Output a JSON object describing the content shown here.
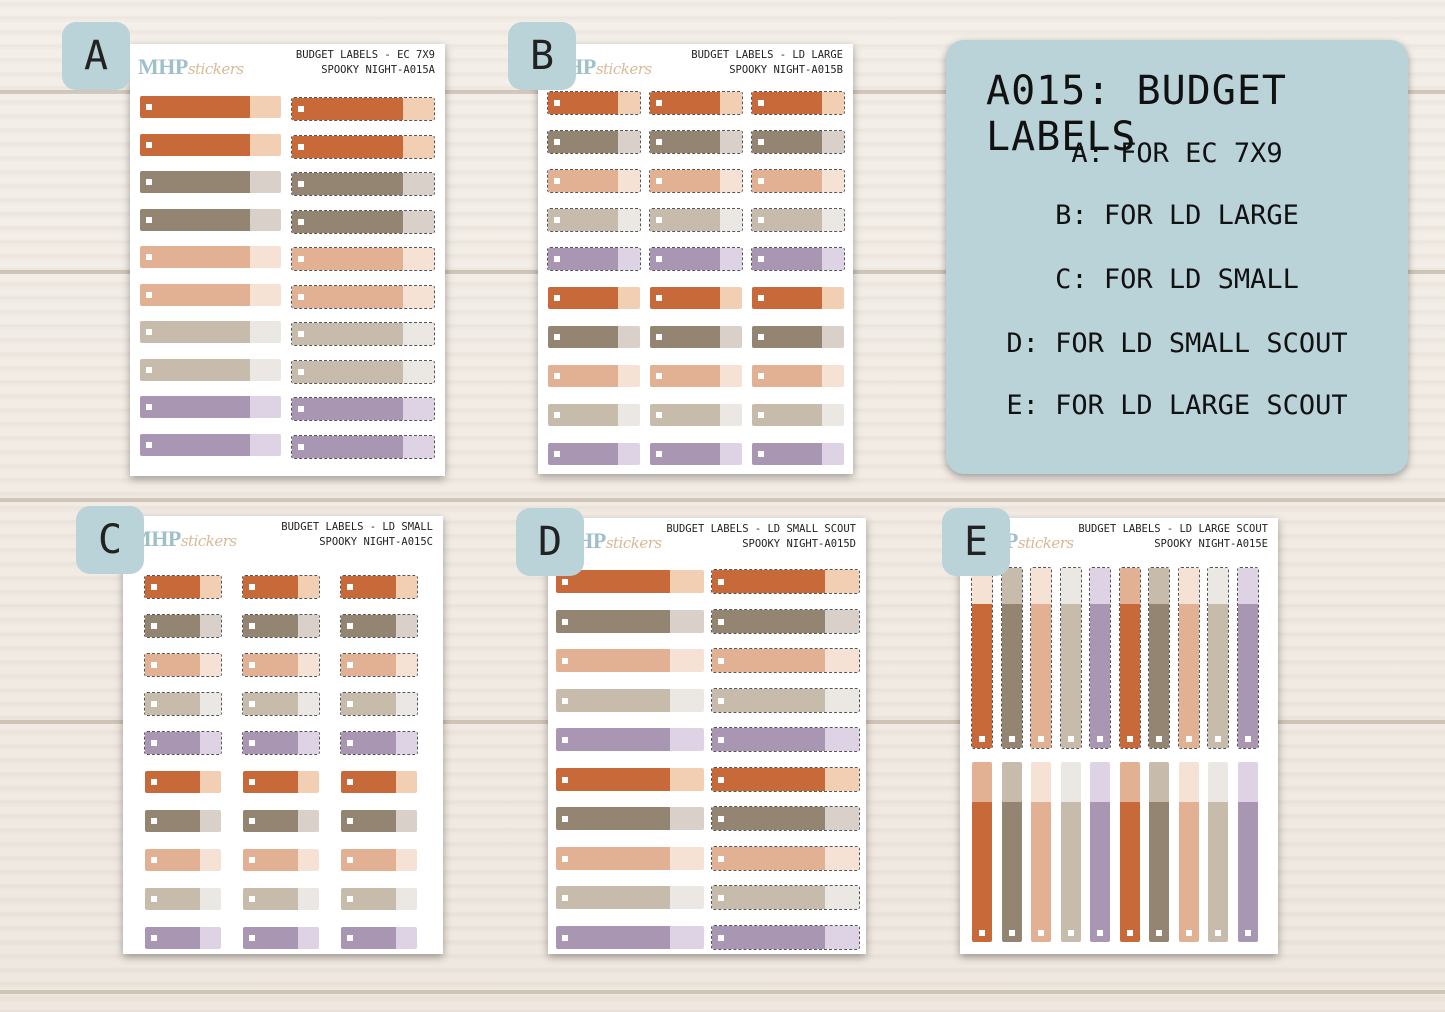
{
  "colors": {
    "rust": "#c8693a",
    "rust_tab": "#f2cfb3",
    "taupe": "#948572",
    "taupe_tab": "#d8d0c9",
    "peach": "#e2b092",
    "peach_tab": "#f6e2d4",
    "sand": "#c7bcac",
    "sand_tab": "#ebe8e3",
    "plum": "#a996b3",
    "plum_tab": "#ddd3e4",
    "badge": "#b9d3d9"
  },
  "logo": {
    "bold": "MHP",
    "script": "stickers"
  },
  "sheets": [
    {
      "id": "A",
      "title1": "BUDGET LABELS - EC 7X9",
      "title2": "SPOOKY NIGHT-A015A"
    },
    {
      "id": "B",
      "title1": "BUDGET LABELS - LD LARGE",
      "title2": "SPOOKY NIGHT-A015B"
    },
    {
      "id": "C",
      "title1": "BUDGET LABELS - LD SMALL",
      "title2": "SPOOKY NIGHT-A015C"
    },
    {
      "id": "D",
      "title1": "BUDGET LABELS - LD SMALL SCOUT",
      "title2": "SPOOKY NIGHT-A015D"
    },
    {
      "id": "E",
      "title1": "BUDGET LABELS - LD LARGE SCOUT",
      "title2": "SPOOKY NIGHT-A015E"
    }
  ],
  "info": {
    "title": "A015: BUDGET LABELS",
    "lines": [
      "A: FOR EC 7X9",
      "B: FOR LD LARGE",
      "C: FOR LD SMALL",
      "D: FOR LD SMALL SCOUT",
      "E: FOR LD LARGE SCOUT"
    ]
  }
}
